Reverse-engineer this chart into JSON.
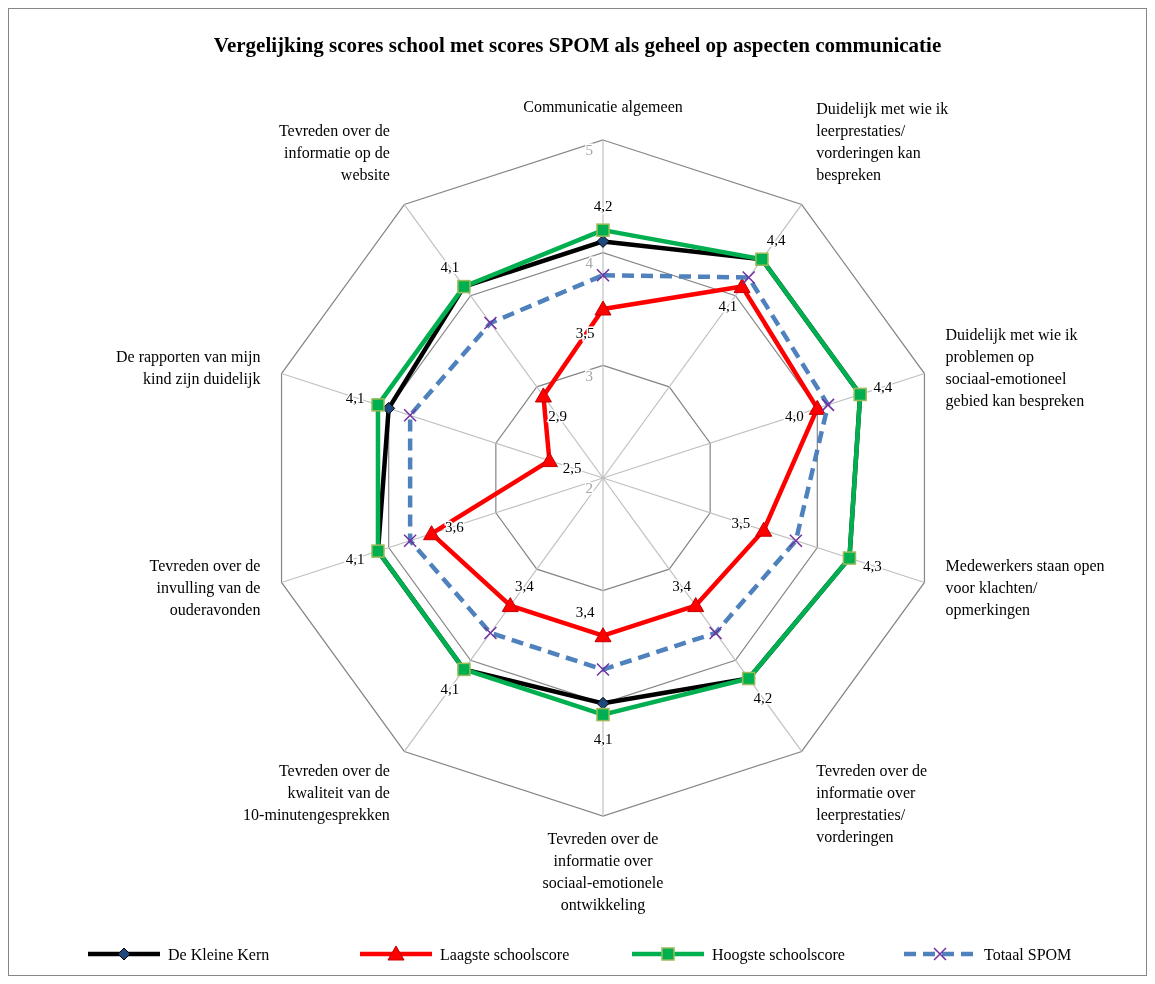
{
  "chart_data": {
    "type": "radar",
    "title": "Vergelijking scores school met scores SPOM als geheel op aspecten communicatie",
    "categories": [
      "Communicatie algemeen",
      "Duidelijk met wie ik leerprestaties/ vorderingen kan bespreken",
      "Duidelijk met wie ik problemen op sociaal-emotioneel gebied kan bespreken",
      "Medewerkers staan open voor klachten/ opmerkingen",
      "Tevreden over de informatie over leerprestaties/ vorderingen",
      "Tevreden over de informatie over sociaal-emotionele ontwikkeling",
      "Tevreden over de kwaliteit van de 10-minutengesprekken",
      "Tevreden over de invulling van de ouderavonden",
      "De rapporten van mijn kind zijn duidelijk",
      "Tevreden over de informatie op de website"
    ],
    "ylim": [
      2,
      5
    ],
    "yticks": [
      2,
      3,
      4,
      5
    ],
    "grid": true,
    "legend": "bottom",
    "series": [
      {
        "name": "De Kleine Kern",
        "color": "#000000",
        "marker": "diamond",
        "line_style": "solid",
        "values": [
          4.1,
          4.4,
          4.4,
          4.3,
          4.2,
          4.0,
          4.1,
          4.1,
          4.0,
          4.1
        ]
      },
      {
        "name": "Laagste schoolscore",
        "color": "#ff0000",
        "marker": "triangle",
        "line_style": "solid",
        "values": [
          3.5,
          4.1,
          4.0,
          3.5,
          3.4,
          3.4,
          3.4,
          3.6,
          2.5,
          2.9
        ],
        "value_labels": [
          "3,5",
          "4,1",
          "4,0",
          "3,5",
          "3,4",
          "3,4",
          "3,4",
          "3,6",
          "2,5",
          "2,9"
        ]
      },
      {
        "name": "Hoogste schoolscore",
        "color": "#00b050",
        "marker": "square",
        "line_style": "solid",
        "values": [
          4.2,
          4.4,
          4.4,
          4.3,
          4.2,
          4.1,
          4.1,
          4.1,
          4.1,
          4.1
        ],
        "value_labels": [
          "4,2",
          "4,4",
          "4,4",
          "4,3",
          "4,2",
          "4,1",
          "4,1",
          "4,1",
          "4,1",
          "4,1"
        ]
      },
      {
        "name": "Totaal SPOM",
        "color": "#4f81bd",
        "marker": "cross",
        "line_style": "dashed",
        "values": [
          3.8,
          4.2,
          4.1,
          3.8,
          3.7,
          3.7,
          3.7,
          3.8,
          3.8,
          3.7
        ]
      }
    ]
  }
}
